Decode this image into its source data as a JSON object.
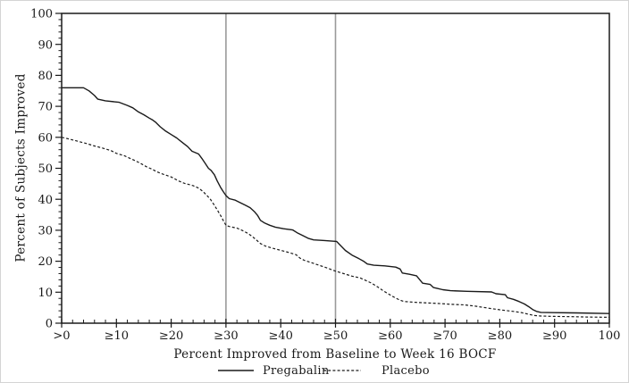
{
  "chart_data": {
    "type": "line",
    "title": "",
    "xlabel": "Percent Improved from Baseline to Week 16 BOCF",
    "ylabel": "Percent of Subjects Improved",
    "xlim": [
      0,
      100
    ],
    "ylim": [
      0,
      100
    ],
    "grid": false,
    "legend_position": "bottom",
    "x_tick_values": [
      0,
      10,
      20,
      30,
      40,
      50,
      60,
      70,
      80,
      90,
      100
    ],
    "x_tick_labels": [
      ">0",
      "≥10",
      "≥20",
      "≥30",
      "≥40",
      "≥50",
      "≥60",
      "≥70",
      "≥80",
      "≥90",
      "100"
    ],
    "y_tick_values": [
      0,
      10,
      20,
      30,
      40,
      50,
      60,
      70,
      80,
      90,
      100
    ],
    "minor_tick_step": 2,
    "reference_lines": {
      "x_values": [
        30,
        50
      ],
      "color": "#9a9a9a"
    },
    "series": [
      {
        "name": "Pregabalin",
        "style": "solid",
        "color": "#1a1a1a",
        "points": [
          [
            0,
            76
          ],
          [
            4,
            76
          ],
          [
            5,
            75
          ],
          [
            6,
            73.5
          ],
          [
            6.6,
            72.3
          ],
          [
            8,
            71.8
          ],
          [
            10.5,
            71.3
          ],
          [
            12,
            70.3
          ],
          [
            13,
            69.5
          ],
          [
            14,
            68.2
          ],
          [
            15,
            67.3
          ],
          [
            16,
            66.2
          ],
          [
            16.6,
            65.6
          ],
          [
            17.2,
            64.8
          ],
          [
            18,
            63.4
          ],
          [
            19,
            62
          ],
          [
            20,
            60.9
          ],
          [
            21,
            59.8
          ],
          [
            22,
            58.4
          ],
          [
            23,
            57
          ],
          [
            23.8,
            55.5
          ],
          [
            25,
            54.6
          ],
          [
            25.6,
            53.2
          ],
          [
            26.2,
            51.6
          ],
          [
            26.8,
            50
          ],
          [
            27.3,
            49.3
          ],
          [
            27.9,
            47.9
          ],
          [
            28.4,
            45.9
          ],
          [
            29,
            43.9
          ],
          [
            29.5,
            42.5
          ],
          [
            30,
            41.2
          ],
          [
            30.6,
            40.2
          ],
          [
            31.7,
            39.7
          ],
          [
            32.6,
            38.9
          ],
          [
            33.5,
            38.1
          ],
          [
            34.4,
            37.3
          ],
          [
            35.2,
            36
          ],
          [
            35.8,
            34.7
          ],
          [
            36.3,
            33.2
          ],
          [
            37,
            32.4
          ],
          [
            38,
            31.6
          ],
          [
            39,
            31
          ],
          [
            40.5,
            30.5
          ],
          [
            42.2,
            30.1
          ],
          [
            43,
            29.2
          ],
          [
            44,
            28.3
          ],
          [
            45,
            27.4
          ],
          [
            46,
            26.9
          ],
          [
            48,
            26.7
          ],
          [
            50.2,
            26.4
          ],
          [
            50.8,
            25.3
          ],
          [
            51.8,
            23.5
          ],
          [
            53,
            22
          ],
          [
            54.3,
            20.8
          ],
          [
            55.2,
            19.9
          ],
          [
            55.8,
            19.1
          ],
          [
            57,
            18.7
          ],
          [
            59,
            18.5
          ],
          [
            61,
            18.1
          ],
          [
            61.8,
            17.5
          ],
          [
            62.2,
            16.2
          ],
          [
            63.5,
            15.8
          ],
          [
            64.8,
            15.3
          ],
          [
            65.4,
            14
          ],
          [
            65.9,
            12.9
          ],
          [
            67.3,
            12.5
          ],
          [
            67.9,
            11.5
          ],
          [
            68.6,
            11.2
          ],
          [
            69.6,
            10.8
          ],
          [
            71,
            10.5
          ],
          [
            74,
            10.3
          ],
          [
            78.5,
            10.1
          ],
          [
            79.3,
            9.5
          ],
          [
            81,
            9.2
          ],
          [
            81.4,
            8.2
          ],
          [
            82.5,
            7.7
          ],
          [
            83.5,
            7
          ],
          [
            84.5,
            6.2
          ],
          [
            85.3,
            5.3
          ],
          [
            86,
            4.4
          ],
          [
            86.7,
            3.8
          ],
          [
            87.5,
            3.5
          ],
          [
            90,
            3.4
          ],
          [
            94,
            3.3
          ],
          [
            100,
            3.1
          ]
        ]
      },
      {
        "name": "Placebo",
        "style": "dashed",
        "color": "#1a1a1a",
        "points": [
          [
            0,
            60
          ],
          [
            1.5,
            59.4
          ],
          [
            3,
            58.7
          ],
          [
            4.5,
            58
          ],
          [
            6,
            57.2
          ],
          [
            7.5,
            56.5
          ],
          [
            9,
            55.7
          ],
          [
            10,
            54.8
          ],
          [
            11.5,
            54
          ],
          [
            12.5,
            53.2
          ],
          [
            13.5,
            52.4
          ],
          [
            14.5,
            51.5
          ],
          [
            15.5,
            50.5
          ],
          [
            16.5,
            49.7
          ],
          [
            17.5,
            48.8
          ],
          [
            18.5,
            48.1
          ],
          [
            20,
            47.2
          ],
          [
            21.5,
            45.8
          ],
          [
            22.5,
            45.1
          ],
          [
            24,
            44.4
          ],
          [
            25,
            43.6
          ],
          [
            25.8,
            42.5
          ],
          [
            26.5,
            41.3
          ],
          [
            27.2,
            39.9
          ],
          [
            27.8,
            38.3
          ],
          [
            28.4,
            36.6
          ],
          [
            29,
            34.8
          ],
          [
            29.5,
            33.2
          ],
          [
            30,
            31.6
          ],
          [
            30.6,
            31.2
          ],
          [
            32,
            30.7
          ],
          [
            33,
            29.9
          ],
          [
            34,
            29
          ],
          [
            34.8,
            28
          ],
          [
            35.6,
            26.8
          ],
          [
            36.3,
            25.7
          ],
          [
            37.2,
            24.9
          ],
          [
            38.3,
            24.3
          ],
          [
            39.8,
            23.6
          ],
          [
            41.3,
            22.9
          ],
          [
            42.8,
            22.1
          ],
          [
            43.5,
            21
          ],
          [
            44.3,
            20.3
          ],
          [
            45.5,
            19.6
          ],
          [
            47,
            18.7
          ],
          [
            48.5,
            17.8
          ],
          [
            50,
            16.8
          ],
          [
            51.5,
            16
          ],
          [
            53,
            15.2
          ],
          [
            54.5,
            14.6
          ],
          [
            55.5,
            13.8
          ],
          [
            56.6,
            12.9
          ],
          [
            57.7,
            11.7
          ],
          [
            58.7,
            10.5
          ],
          [
            59.7,
            9.4
          ],
          [
            60.7,
            8.4
          ],
          [
            61.7,
            7.5
          ],
          [
            62.5,
            7
          ],
          [
            64,
            6.8
          ],
          [
            66,
            6.6
          ],
          [
            68.5,
            6.4
          ],
          [
            71,
            6.1
          ],
          [
            73.5,
            5.9
          ],
          [
            75.5,
            5.5
          ],
          [
            77,
            5.1
          ],
          [
            78.5,
            4.7
          ],
          [
            80.5,
            4.2
          ],
          [
            82.5,
            3.8
          ],
          [
            84,
            3.4
          ],
          [
            85.2,
            2.9
          ],
          [
            86.2,
            2.5
          ],
          [
            87.5,
            2.3
          ],
          [
            90,
            2.2
          ],
          [
            93,
            2.1
          ],
          [
            96,
            2
          ],
          [
            100,
            1.9
          ]
        ]
      }
    ]
  },
  "colors": {
    "frame": "#1a1a1a",
    "background": "#ffffff",
    "reference_line": "#9a9a9a"
  }
}
